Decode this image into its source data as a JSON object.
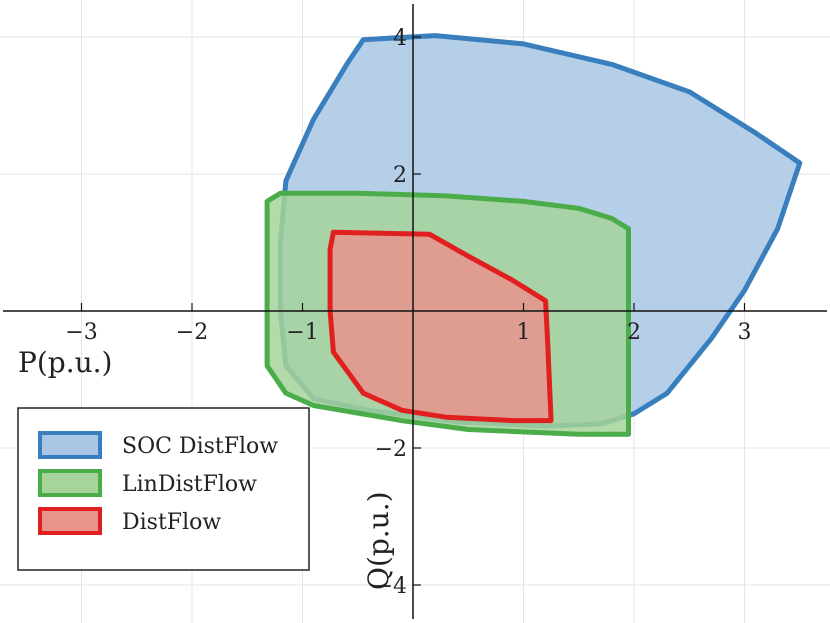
{
  "chart_data": {
    "type": "area",
    "title": "",
    "xlabel": "P(p.u.)",
    "ylabel": "Q(p.u.)",
    "xlim": [
      -3.7,
      3.8
    ],
    "ylim": [
      -4.5,
      4.5
    ],
    "grid": true,
    "legend_position": "bottom-left",
    "x_ticks": [
      {
        "value": -3,
        "label": "−3"
      },
      {
        "value": -2,
        "label": "−2"
      },
      {
        "value": -1,
        "label": "−1"
      },
      {
        "value": 1,
        "label": "1"
      },
      {
        "value": 2,
        "label": "2"
      },
      {
        "value": 3,
        "label": "3"
      }
    ],
    "y_ticks": [
      {
        "value": 4,
        "label": "4"
      },
      {
        "value": 2,
        "label": "2"
      },
      {
        "value": -2,
        "label": "−2"
      },
      {
        "value": -4,
        "label": "−4"
      }
    ],
    "series": [
      {
        "name": "SOC DistFlow",
        "stroke": "#3a7fbd",
        "fill": "#a9c7e5",
        "points": [
          [
            -0.45,
            3.96
          ],
          [
            0.2,
            4.02
          ],
          [
            1.0,
            3.9
          ],
          [
            1.8,
            3.6
          ],
          [
            2.5,
            3.2
          ],
          [
            3.1,
            2.6
          ],
          [
            3.5,
            2.16
          ],
          [
            3.3,
            1.2
          ],
          [
            3.0,
            0.3
          ],
          [
            2.7,
            -0.4
          ],
          [
            2.3,
            -1.2
          ],
          [
            2.0,
            -1.5
          ],
          [
            1.7,
            -1.65
          ],
          [
            1.2,
            -1.68
          ],
          [
            0.4,
            -1.62
          ],
          [
            -0.4,
            -1.45
          ],
          [
            -0.9,
            -1.28
          ],
          [
            -1.15,
            -0.8
          ],
          [
            -1.2,
            0.0
          ],
          [
            -1.2,
            1.0
          ],
          [
            -1.15,
            1.9
          ],
          [
            -0.9,
            2.8
          ],
          [
            -0.6,
            3.6
          ]
        ]
      },
      {
        "name": "LinDistFlow",
        "stroke": "#4aad4a",
        "fill": "#a6d49a",
        "points": [
          [
            -1.2,
            1.72
          ],
          [
            -0.5,
            1.72
          ],
          [
            0.3,
            1.68
          ],
          [
            1.0,
            1.6
          ],
          [
            1.5,
            1.5
          ],
          [
            1.8,
            1.35
          ],
          [
            1.95,
            1.2
          ],
          [
            1.95,
            0.0
          ],
          [
            1.95,
            -1.8
          ],
          [
            1.5,
            -1.8
          ],
          [
            0.5,
            -1.73
          ],
          [
            -0.1,
            -1.6
          ],
          [
            -0.9,
            -1.38
          ],
          [
            -1.15,
            -1.2
          ],
          [
            -1.32,
            -0.8
          ],
          [
            -1.32,
            0.0
          ],
          [
            -1.32,
            1.6
          ]
        ]
      },
      {
        "name": "DistFlow",
        "stroke": "#e02020",
        "fill": "#e8938c",
        "points": [
          [
            -0.72,
            1.15
          ],
          [
            0.15,
            1.12
          ],
          [
            0.5,
            0.8
          ],
          [
            0.9,
            0.45
          ],
          [
            1.2,
            0.15
          ],
          [
            1.22,
            -0.5
          ],
          [
            1.25,
            -1.6
          ],
          [
            0.9,
            -1.6
          ],
          [
            0.3,
            -1.55
          ],
          [
            -0.1,
            -1.45
          ],
          [
            -0.45,
            -1.2
          ],
          [
            -0.72,
            -0.6
          ],
          [
            -0.75,
            0.0
          ],
          [
            -0.75,
            0.9
          ]
        ]
      }
    ]
  }
}
